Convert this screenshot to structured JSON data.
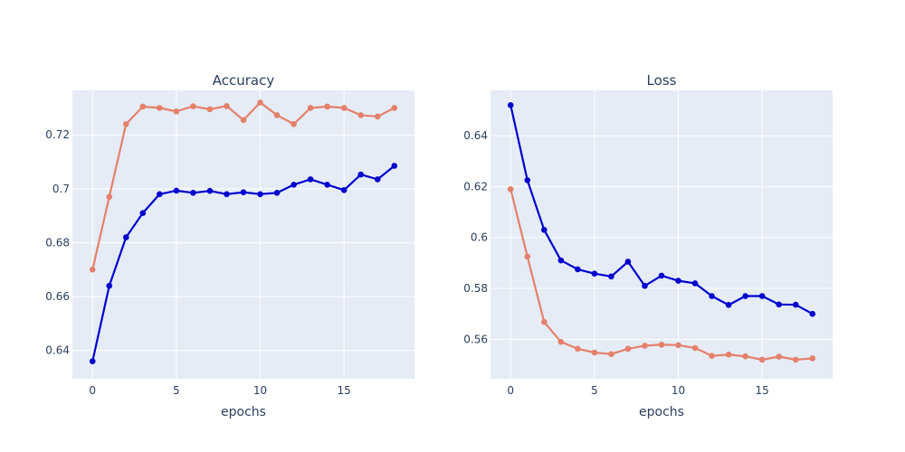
{
  "chart_data": [
    {
      "type": "line",
      "title": "Accuracy",
      "xlabel": "epochs",
      "ylabel": "",
      "x": [
        0,
        1,
        2,
        3,
        4,
        5,
        6,
        7,
        8,
        9,
        10,
        11,
        12,
        13,
        14,
        15,
        16,
        17,
        18
      ],
      "xlim": [
        -1.2,
        19.2
      ],
      "ylim": [
        0.6295,
        0.7365
      ],
      "xticks": [
        0,
        5,
        10,
        15
      ],
      "xtick_labels": [
        "0",
        "5",
        "10",
        "15"
      ],
      "yticks": [
        0.64,
        0.66,
        0.68,
        0.7,
        0.72
      ],
      "ytick_labels": [
        "0.64",
        "0.66",
        "0.68",
        "0.7",
        "0.72"
      ],
      "grid": true,
      "series": [
        {
          "color": "#e5806a",
          "values": [
            0.67,
            0.697,
            0.724,
            0.7305,
            0.73,
            0.7287,
            0.7306,
            0.7295,
            0.7307,
            0.7255,
            0.732,
            0.7273,
            0.724,
            0.73,
            0.7305,
            0.73,
            0.7273,
            0.7268,
            0.73
          ]
        },
        {
          "color": "#0000cd",
          "values": [
            0.636,
            0.664,
            0.682,
            0.691,
            0.698,
            0.6993,
            0.6985,
            0.6992,
            0.698,
            0.6987,
            0.698,
            0.6985,
            0.7015,
            0.7035,
            0.7015,
            0.6995,
            0.7053,
            0.7035,
            0.7085
          ]
        }
      ]
    },
    {
      "type": "line",
      "title": "Loss",
      "xlabel": "epochs",
      "ylabel": "",
      "x": [
        0,
        1,
        2,
        3,
        4,
        5,
        6,
        7,
        8,
        9,
        10,
        11,
        12,
        13,
        14,
        15,
        16,
        17,
        18
      ],
      "xlim": [
        -1.2,
        19.2
      ],
      "ylim": [
        0.5445,
        0.6578
      ],
      "xticks": [
        0,
        5,
        10,
        15
      ],
      "xtick_labels": [
        "0",
        "5",
        "10",
        "15"
      ],
      "yticks": [
        0.56,
        0.58,
        0.6,
        0.62,
        0.64
      ],
      "ytick_labels": [
        "0.56",
        "0.58",
        "0.6",
        "0.62",
        "0.64"
      ],
      "grid": true,
      "series": [
        {
          "color": "#e5806a",
          "values": [
            0.619,
            0.5925,
            0.5668,
            0.559,
            0.5563,
            0.5548,
            0.5542,
            0.5563,
            0.5575,
            0.5579,
            0.5577,
            0.5566,
            0.5535,
            0.554,
            0.5533,
            0.552,
            0.5532,
            0.552,
            0.5525
          ]
        },
        {
          "color": "#0000cd",
          "values": [
            0.652,
            0.6225,
            0.603,
            0.591,
            0.5875,
            0.5858,
            0.5847,
            0.5905,
            0.581,
            0.585,
            0.583,
            0.582,
            0.577,
            0.5735,
            0.577,
            0.577,
            0.5737,
            0.5736,
            0.57
          ]
        }
      ]
    }
  ]
}
